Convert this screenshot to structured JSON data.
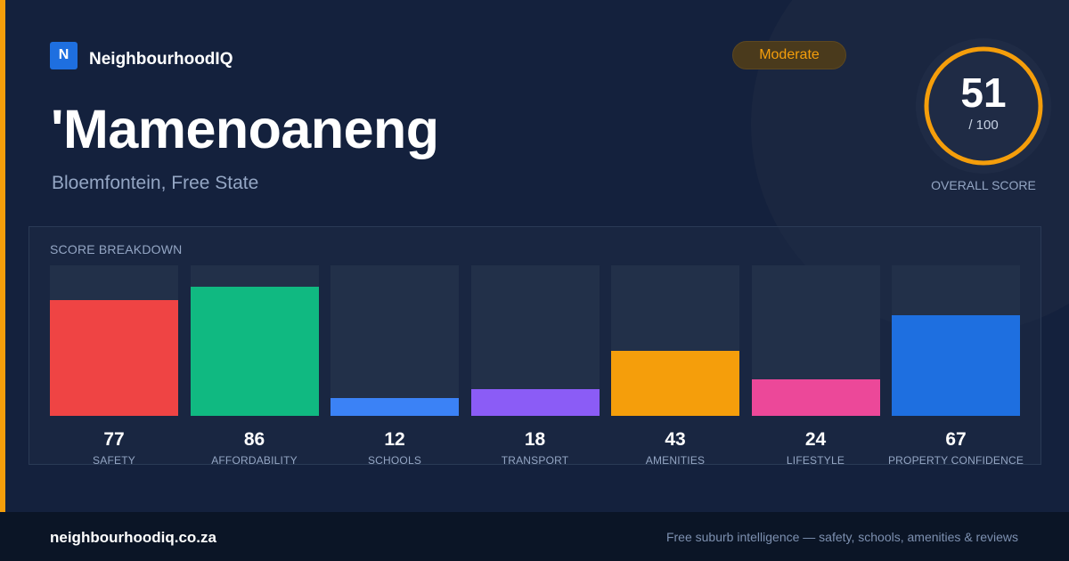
{
  "brand": {
    "logo_letter": "N",
    "name": "NeighbourhoodIQ"
  },
  "suburb": {
    "name": "'Mamenoaneng",
    "location": "Bloemfontein, Free State"
  },
  "rating_badge": "Moderate",
  "overall": {
    "score": "51",
    "max": "/ 100",
    "label": "OVERALL SCORE",
    "fraction": 0.51
  },
  "breakdown": {
    "title": "SCORE BREAKDOWN",
    "items": [
      {
        "label": "SAFETY",
        "value": "77",
        "color": "#ef4444"
      },
      {
        "label": "AFFORDABILITY",
        "value": "86",
        "color": "#10b981"
      },
      {
        "label": "SCHOOLS",
        "value": "12",
        "color": "#3b82f6"
      },
      {
        "label": "TRANSPORT",
        "value": "18",
        "color": "#8b5cf6"
      },
      {
        "label": "AMENITIES",
        "value": "43",
        "color": "#f59e0b"
      },
      {
        "label": "LIFESTYLE",
        "value": "24",
        "color": "#ec4899"
      },
      {
        "label": "PROPERTY CONFIDENCE",
        "value": "67",
        "color": "#1e6fe0"
      }
    ]
  },
  "colors": {
    "accent": "#f59e0b",
    "background": "#14213d",
    "brand_blue": "#1e6fe0"
  },
  "footer": {
    "url": "neighbourhoodiq.co.za",
    "tagline": "Free suburb intelligence — safety, schools, amenities & reviews"
  }
}
